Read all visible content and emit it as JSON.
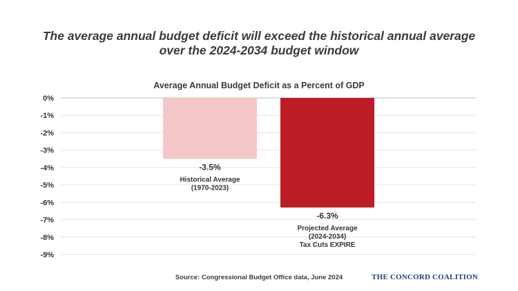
{
  "headline": {
    "line1": "The average annual budget deficit will exceed the historical annual average",
    "line2": "over the 2024-2034 budget window"
  },
  "source": "Source: Congressional Budget Office data, June 2024",
  "brand": "The Concord Coalition",
  "colors": {
    "historical": "#f6c7c9",
    "projected": "#bb1c26"
  },
  "chart_data": {
    "type": "bar",
    "title": "Average Annual Budget Deficit as a Percent of GDP",
    "xlabel": "",
    "ylabel": "",
    "ylim": [
      -9,
      0
    ],
    "grid": true,
    "y_ticks": [
      "0%",
      "-1%",
      "-2%",
      "-3%",
      "-4%",
      "-5%",
      "-6%",
      "-7%",
      "-8%",
      "-9%"
    ],
    "categories": [
      "Historical Average",
      "Projected Average"
    ],
    "values": [
      -3.5,
      -6.3
    ],
    "data_labels": [
      "-3.5%",
      "-6.3%"
    ],
    "category_labels": [
      [
        "Historical Average",
        "(1970-2023)"
      ],
      [
        "Projected Average",
        "(2024-2034)",
        "Tax Cuts EXPIRE"
      ]
    ]
  }
}
